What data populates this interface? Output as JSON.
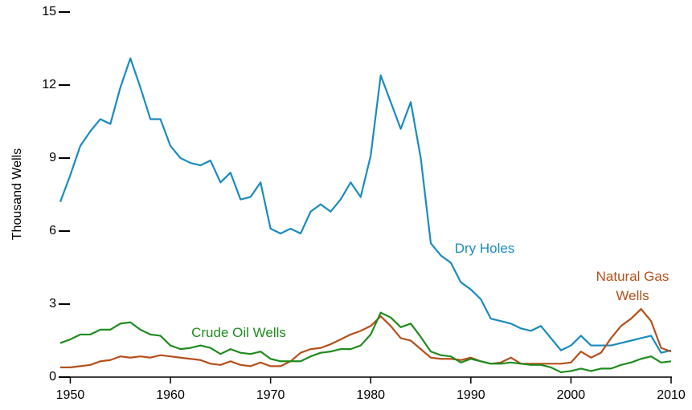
{
  "chart_data": {
    "type": "line",
    "y_label": "Thousand Wells",
    "x": [
      1949,
      1950,
      1951,
      1952,
      1953,
      1954,
      1955,
      1956,
      1957,
      1958,
      1959,
      1960,
      1961,
      1962,
      1963,
      1964,
      1965,
      1966,
      1967,
      1968,
      1969,
      1970,
      1971,
      1972,
      1973,
      1974,
      1975,
      1976,
      1977,
      1978,
      1979,
      1980,
      1981,
      1982,
      1983,
      1984,
      1985,
      1986,
      1987,
      1988,
      1989,
      1990,
      1991,
      1992,
      1993,
      1994,
      1995,
      1996,
      1997,
      1998,
      1999,
      2000,
      2001,
      2002,
      2003,
      2004,
      2005,
      2006,
      2007,
      2008,
      2009,
      2010
    ],
    "series": [
      {
        "name": "Dry Holes",
        "color": "#1a8bc0",
        "values": [
          7.2,
          8.3,
          9.5,
          10.1,
          10.6,
          10.4,
          11.9,
          13.1,
          11.9,
          10.6,
          10.6,
          9.5,
          9.0,
          8.8,
          8.7,
          8.9,
          8.0,
          8.4,
          7.3,
          7.4,
          8.0,
          6.1,
          5.9,
          6.1,
          5.9,
          6.8,
          7.1,
          6.8,
          7.3,
          8.0,
          7.4,
          9.1,
          12.4,
          11.3,
          10.2,
          11.3,
          9.0,
          5.5,
          5.0,
          4.7,
          3.9,
          3.6,
          3.2,
          2.4,
          2.3,
          2.2,
          2.0,
          1.9,
          2.1,
          1.6,
          1.1,
          1.3,
          1.7,
          1.3,
          1.3,
          1.3,
          1.4,
          1.5,
          1.6,
          1.7,
          1.0,
          1.1
        ]
      },
      {
        "name": "Natural Gas Wells",
        "color": "#b5501a",
        "values": [
          0.4,
          0.4,
          0.45,
          0.5,
          0.65,
          0.7,
          0.85,
          0.8,
          0.85,
          0.8,
          0.9,
          0.85,
          0.8,
          0.75,
          0.7,
          0.55,
          0.5,
          0.65,
          0.5,
          0.45,
          0.6,
          0.45,
          0.45,
          0.65,
          1.0,
          1.15,
          1.2,
          1.35,
          1.55,
          1.75,
          1.9,
          2.1,
          2.5,
          2.1,
          1.6,
          1.5,
          1.15,
          0.8,
          0.75,
          0.75,
          0.7,
          0.8,
          0.65,
          0.55,
          0.6,
          0.8,
          0.55,
          0.55,
          0.55,
          0.55,
          0.55,
          0.6,
          1.05,
          0.8,
          1.0,
          1.6,
          2.1,
          2.4,
          2.8,
          2.3,
          1.2,
          1.05
        ]
      },
      {
        "name": "Crude Oil Wells",
        "color": "#1e8c1e",
        "values": [
          1.4,
          1.55,
          1.75,
          1.75,
          1.95,
          1.95,
          2.2,
          2.25,
          1.95,
          1.75,
          1.7,
          1.3,
          1.15,
          1.2,
          1.3,
          1.2,
          0.95,
          1.15,
          1.0,
          0.95,
          1.05,
          0.75,
          0.65,
          0.65,
          0.65,
          0.85,
          1.0,
          1.05,
          1.15,
          1.15,
          1.3,
          1.75,
          2.65,
          2.45,
          2.05,
          2.2,
          1.65,
          1.05,
          0.9,
          0.85,
          0.6,
          0.75,
          0.65,
          0.55,
          0.55,
          0.6,
          0.55,
          0.5,
          0.5,
          0.4,
          0.2,
          0.25,
          0.35,
          0.25,
          0.35,
          0.35,
          0.5,
          0.6,
          0.75,
          0.85,
          0.6,
          0.65
        ]
      }
    ],
    "xlim": [
      1949,
      2010
    ],
    "xticks": [
      1950,
      1960,
      1970,
      1980,
      1990,
      2000,
      2010
    ],
    "ylim": [
      0,
      15
    ],
    "yticks": [
      0,
      3,
      6,
      9,
      12,
      15
    ]
  }
}
